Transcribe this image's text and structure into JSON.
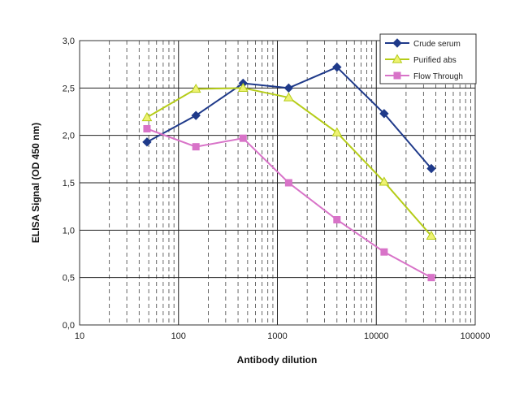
{
  "chart_data": {
    "type": "line",
    "title": "",
    "xlabel": "Antibody dilution",
    "ylabel": "ELISA Signal (OD 450 nm)",
    "x_scale": "log",
    "xlim": [
      10,
      100000
    ],
    "ylim": [
      0,
      3
    ],
    "x_ticks": [
      10,
      100,
      1000,
      10000,
      100000
    ],
    "x_tick_labels": [
      "10",
      "100",
      "1000",
      "10000",
      "100000"
    ],
    "y_ticks": [
      0,
      0.5,
      1,
      1.5,
      2,
      2.5,
      3
    ],
    "y_tick_labels": [
      "0,0",
      "0,5",
      "1,0",
      "1,5",
      "2,0",
      "2,5",
      "3,0"
    ],
    "grid": true,
    "legend_position": "top-right",
    "x": [
      48,
      150,
      450,
      1300,
      4000,
      12000,
      36000
    ],
    "series": [
      {
        "name": "Crude serum",
        "color": "#1f3a8a",
        "marker": "diamond",
        "values": [
          1.93,
          2.21,
          2.55,
          2.5,
          2.72,
          2.23,
          1.65
        ]
      },
      {
        "name": "Purified abs",
        "color": "#b5cc18",
        "marker": "triangle",
        "values": [
          2.19,
          2.49,
          2.5,
          2.4,
          2.03,
          1.51,
          0.94
        ]
      },
      {
        "name": "Flow Through",
        "color": "#d873c8",
        "marker": "square",
        "values": [
          2.07,
          1.88,
          1.97,
          1.5,
          1.11,
          0.77,
          0.5
        ]
      }
    ]
  }
}
